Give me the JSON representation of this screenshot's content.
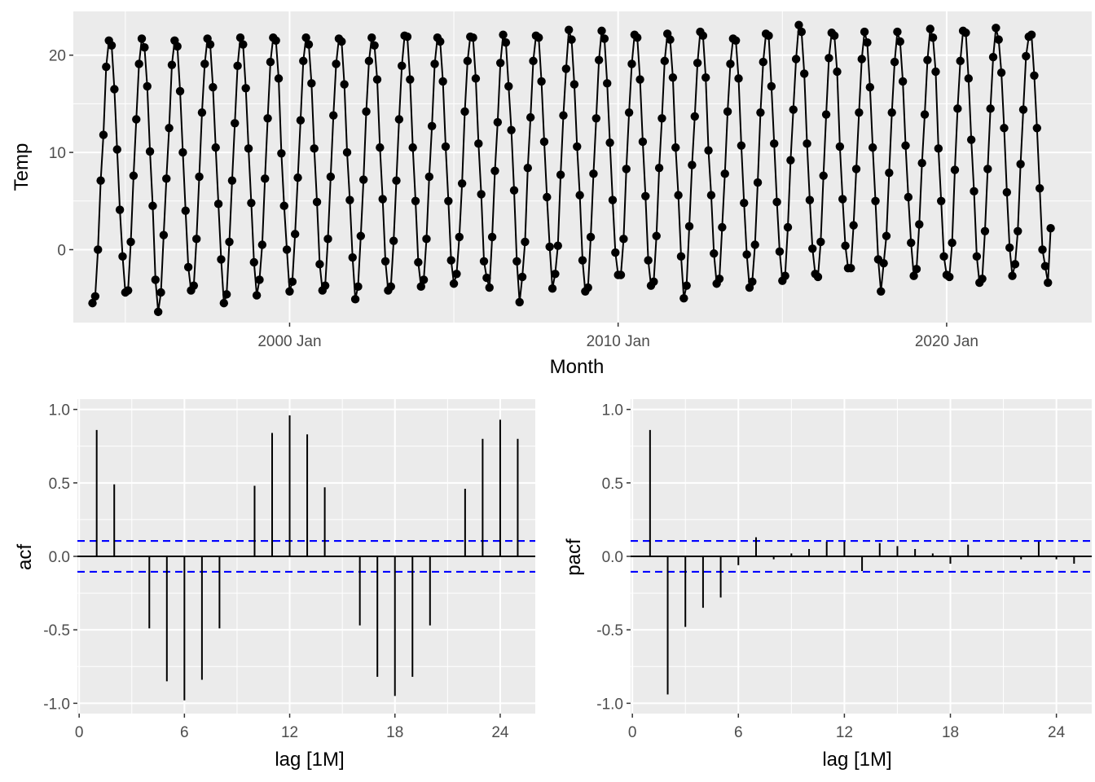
{
  "chart_data": [
    {
      "type": "line",
      "xlabel": "Month",
      "ylabel": "Temp",
      "x_ticks": [
        "2000 Jan",
        "2010 Jan",
        "2020 Jan"
      ],
      "y_ticks": [
        "0",
        "10",
        "20"
      ],
      "ylim": [
        -7.5,
        24.5
      ],
      "xlim": [
        "1993-06",
        "2024-06"
      ],
      "start": "1994-01",
      "frequency": "monthly",
      "marker": "point",
      "values": [
        -5.5,
        -4.8,
        0.0,
        7.1,
        11.8,
        18.8,
        21.5,
        21.0,
        16.5,
        10.3,
        4.1,
        -0.7,
        -4.4,
        -4.2,
        0.8,
        7.6,
        13.4,
        19.1,
        21.7,
        20.8,
        16.8,
        10.1,
        4.5,
        -3.1,
        -6.4,
        -4.4,
        1.5,
        7.3,
        12.5,
        19.0,
        21.5,
        20.9,
        16.3,
        10.0,
        4.0,
        -1.8,
        -4.2,
        -3.7,
        1.1,
        7.5,
        14.1,
        19.1,
        21.7,
        21.1,
        16.7,
        10.5,
        4.7,
        -1.0,
        -5.5,
        -4.6,
        0.8,
        7.1,
        13.0,
        18.9,
        21.8,
        21.1,
        16.6,
        10.4,
        4.8,
        -1.3,
        -4.7,
        -3.1,
        0.5,
        7.3,
        13.5,
        19.3,
        21.8,
        21.5,
        17.6,
        9.9,
        4.5,
        0.0,
        -4.3,
        -3.3,
        1.6,
        7.4,
        13.3,
        19.4,
        21.8,
        21.1,
        17.1,
        10.4,
        4.9,
        -1.5,
        -4.2,
        -3.7,
        1.1,
        7.5,
        13.8,
        19.1,
        21.7,
        21.4,
        17.0,
        10.0,
        5.1,
        -0.8,
        -5.1,
        -3.8,
        1.4,
        7.2,
        14.2,
        19.4,
        21.8,
        21.0,
        17.5,
        10.5,
        5.2,
        -1.2,
        -4.2,
        -3.8,
        0.9,
        7.1,
        13.4,
        18.9,
        22.0,
        21.9,
        17.5,
        10.5,
        5.0,
        -1.3,
        -3.8,
        -3.1,
        1.1,
        7.5,
        12.7,
        19.1,
        21.8,
        21.4,
        17.3,
        10.6,
        5.0,
        -1.1,
        -3.5,
        -2.5,
        1.3,
        6.8,
        14.2,
        19.4,
        21.9,
        21.8,
        17.6,
        10.9,
        5.7,
        -1.2,
        -2.9,
        -3.9,
        1.3,
        8.1,
        13.1,
        19.2,
        22.1,
        21.3,
        16.8,
        12.3,
        6.1,
        -1.2,
        -5.4,
        -2.8,
        0.8,
        8.4,
        13.6,
        19.4,
        22.0,
        21.8,
        17.3,
        11.1,
        5.4,
        0.3,
        -4.0,
        -2.5,
        0.4,
        7.7,
        13.8,
        18.6,
        22.6,
        21.6,
        17.0,
        10.6,
        5.6,
        -1.1,
        -4.3,
        -3.9,
        1.3,
        7.8,
        13.5,
        19.5,
        22.5,
        21.7,
        17.1,
        11.0,
        5.1,
        -0.3,
        -2.6,
        -2.6,
        1.1,
        8.3,
        14.1,
        19.1,
        22.1,
        21.8,
        17.5,
        11.1,
        5.5,
        -1.1,
        -3.7,
        -3.3,
        1.4,
        8.4,
        13.5,
        19.4,
        22.2,
        21.6,
        17.7,
        10.5,
        5.6,
        -0.7,
        -5.0,
        -3.7,
        2.4,
        8.7,
        13.7,
        19.2,
        22.4,
        22.0,
        17.7,
        10.2,
        5.6,
        -0.4,
        -3.5,
        -3.0,
        2.3,
        7.8,
        14.2,
        19.1,
        21.7,
        21.5,
        17.6,
        10.7,
        4.8,
        -0.5,
        -3.9,
        -3.3,
        0.5,
        6.9,
        14.1,
        19.3,
        22.2,
        22.0,
        16.8,
        10.9,
        4.9,
        -0.2,
        -3.2,
        -2.7,
        2.3,
        9.2,
        14.4,
        19.6,
        23.1,
        22.4,
        18.1,
        10.9,
        5.1,
        0.1,
        -2.5,
        -2.8,
        0.8,
        7.6,
        13.9,
        19.7,
        22.3,
        22.0,
        18.3,
        10.6,
        5.2,
        0.4,
        -1.9,
        -1.9,
        2.5,
        8.3,
        14.1,
        19.6,
        22.4,
        21.3,
        16.7,
        10.5,
        5.0,
        -1.0,
        -4.3,
        -1.4,
        1.4,
        7.9,
        14.1,
        19.3,
        22.4,
        21.4,
        17.3,
        10.7,
        5.4,
        0.7,
        -2.7,
        -2.0,
        2.6,
        8.9,
        13.9,
        19.5,
        22.7,
        21.8,
        18.3,
        10.4,
        5.0,
        -0.7,
        -2.6,
        -2.8,
        0.7,
        8.2,
        14.5,
        19.4,
        22.5,
        22.3,
        17.6,
        11.3,
        6.0,
        -0.7,
        -3.4,
        -3.0,
        1.9,
        8.3,
        14.5,
        19.8,
        22.8,
        21.6,
        18.2,
        12.5,
        5.9,
        0.2,
        -2.7,
        -1.5,
        1.9,
        8.8,
        14.4,
        19.9,
        21.9,
        22.1,
        17.9,
        12.5,
        6.3,
        0.0,
        -1.7,
        -3.4,
        2.2
      ]
    },
    {
      "type": "bar",
      "title": "",
      "xlabel": "lag [1M]",
      "ylabel": "acf",
      "x_ticks": [
        0,
        6,
        12,
        18,
        24
      ],
      "y_ticks": [
        "-1.0",
        "-0.5",
        "0.0",
        "0.5",
        "1.0"
      ],
      "ylim": [
        -1.07,
        1.07
      ],
      "xlim": [
        -0.1,
        26.0
      ],
      "lags": [
        1,
        2,
        3,
        4,
        5,
        6,
        7,
        8,
        9,
        10,
        11,
        12,
        13,
        14,
        15,
        16,
        17,
        18,
        19,
        20,
        21,
        22,
        23,
        24,
        25
      ],
      "values": [
        0.86,
        0.49,
        0.0,
        -0.49,
        -0.85,
        -0.98,
        -0.84,
        -0.49,
        0.0,
        0.48,
        0.84,
        0.96,
        0.83,
        0.47,
        0.0,
        -0.47,
        -0.82,
        -0.95,
        -0.82,
        -0.47,
        0.0,
        0.46,
        0.8,
        0.93,
        0.8
      ],
      "confidence_band": 0.105,
      "band_color": "#0000ff"
    },
    {
      "type": "bar",
      "title": "",
      "xlabel": "lag [1M]",
      "ylabel": "pacf",
      "x_ticks": [
        0,
        6,
        12,
        18,
        24
      ],
      "y_ticks": [
        "-1.0",
        "-0.5",
        "0.0",
        "0.5",
        "1.0"
      ],
      "ylim": [
        -1.07,
        1.07
      ],
      "xlim": [
        -0.1,
        26.0
      ],
      "lags": [
        1,
        2,
        3,
        4,
        5,
        6,
        7,
        8,
        9,
        10,
        11,
        12,
        13,
        14,
        15,
        16,
        17,
        18,
        19,
        20,
        21,
        22,
        23,
        24,
        25
      ],
      "values": [
        0.86,
        -0.94,
        -0.48,
        -0.35,
        -0.28,
        -0.06,
        0.13,
        -0.02,
        0.02,
        0.05,
        0.1,
        0.1,
        -0.1,
        0.09,
        0.07,
        0.05,
        0.02,
        -0.05,
        0.08,
        0.0,
        0.0,
        -0.02,
        0.1,
        -0.02,
        -0.05
      ],
      "confidence_band": 0.105,
      "band_color": "#0000ff"
    }
  ]
}
